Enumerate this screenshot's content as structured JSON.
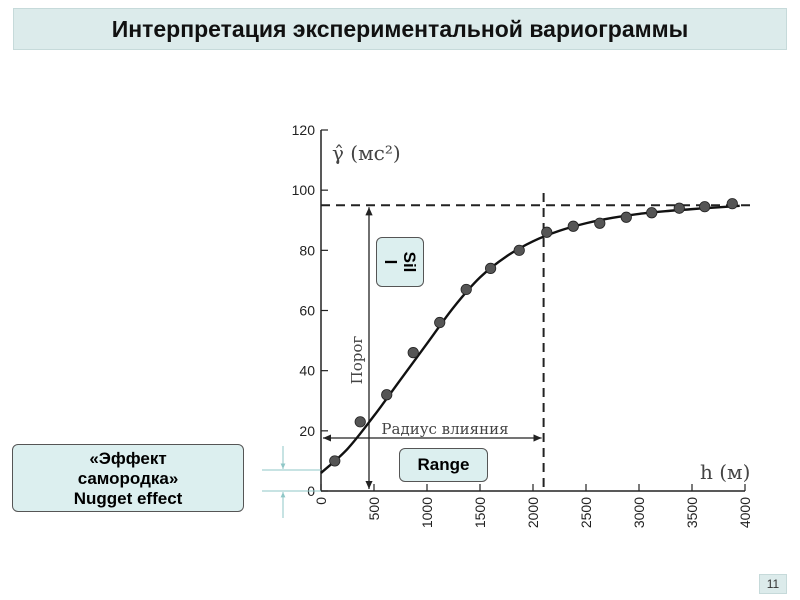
{
  "header": {
    "title": "Интерпретация экспериментальной вариограммы"
  },
  "callouts": {
    "nugget_line1": "«Эффект",
    "nugget_line2": "самородка»",
    "nugget_line3": "Nugget effect",
    "range": "Range",
    "sill_line1": "Sil",
    "sill_line2": "l"
  },
  "footer": {
    "page_number": "11"
  },
  "chart_data": {
    "type": "scatter",
    "title": "",
    "ylabel": "γ̂ (мс²)",
    "xlabel": "h (м)",
    "xlim": [
      0,
      4000
    ],
    "ylim": [
      0,
      120
    ],
    "xticks": [
      "0",
      "500",
      "1000",
      "1500",
      "2000",
      "2500",
      "3000",
      "3500",
      "4000"
    ],
    "yticks": [
      "0",
      "20",
      "40",
      "60",
      "80",
      "100",
      "120"
    ],
    "grid": false,
    "points": {
      "x": [
        130,
        370,
        620,
        870,
        1120,
        1370,
        1600,
        1870,
        2130,
        2380,
        2630,
        2880,
        3120,
        3380,
        3620,
        3880
      ],
      "y": [
        10,
        23,
        32,
        46,
        56,
        67,
        74,
        80,
        86,
        88,
        89,
        91,
        92.5,
        94,
        94.5,
        95.5
      ]
    },
    "fitted_curve": {
      "x": [
        0,
        250,
        500,
        750,
        1000,
        1250,
        1500,
        1750,
        2000,
        2250,
        2500,
        2750,
        3000,
        3250,
        3500,
        3750,
        3950
      ],
      "y": [
        6,
        14,
        25,
        37,
        49,
        61,
        71,
        78,
        83,
        86.5,
        89,
        90.8,
        92.1,
        93,
        93.7,
        94.3,
        94.8
      ]
    },
    "sill_value": 95,
    "range_value": 2100,
    "nugget_value": 6,
    "annotations": {
      "sill_label": "Порог",
      "range_label": "Радиус влияния"
    }
  }
}
